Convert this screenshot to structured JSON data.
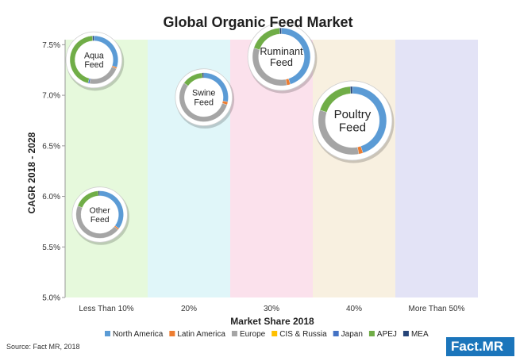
{
  "chart_data": {
    "type": "bubble-donut",
    "title": "Global Organic Feed Market",
    "xlabel": "Market Share 2018",
    "ylabel": "CAGR 2018 - 2028",
    "categories": [
      "Less Than 10%",
      "20%",
      "30%",
      "40%",
      "More Than 50%"
    ],
    "band_colors": [
      "#e6f9dc",
      "#e0f6f9",
      "#fbe1ec",
      "#f8f0e0",
      "#e3e3f6"
    ],
    "y_ticks": [
      "5.0%",
      "5.5%",
      "6.0%",
      "6.5%",
      "7.0%",
      "7.5%"
    ],
    "ylim": [
      5.0,
      7.55
    ],
    "legend": [
      {
        "name": "North America",
        "color": "#5b9bd5"
      },
      {
        "name": "Latin America",
        "color": "#ed7d31"
      },
      {
        "name": "Europe",
        "color": "#a5a5a5"
      },
      {
        "name": "CIS & Russia",
        "color": "#ffc000"
      },
      {
        "name": "Japan",
        "color": "#4472c4"
      },
      {
        "name": "APEJ",
        "color": "#70ad47"
      },
      {
        "name": "MEA",
        "color": "#264478"
      }
    ],
    "bubbles": [
      {
        "name": "Aqua Feed",
        "lines": [
          "Aqua",
          "Feed"
        ],
        "category": "Less Than 10%",
        "offset": 0.35,
        "cagr": 7.35,
        "size": 0.65,
        "shares": [
          30,
          1,
          22,
          0,
          1,
          45,
          1
        ]
      },
      {
        "name": "Swine Feed",
        "lines": [
          "Swine",
          "Feed"
        ],
        "category": "20%",
        "offset": 0.68,
        "cagr": 6.98,
        "size": 0.66,
        "shares": [
          28,
          2,
          55,
          0,
          0,
          14,
          1
        ]
      },
      {
        "name": "Ruminant Feed",
        "lines": [
          "Ruminant",
          "Feed"
        ],
        "category": "30%",
        "offset": 0.62,
        "cagr": 7.38,
        "size": 0.78,
        "shares": [
          45,
          2,
          33,
          0,
          0,
          19,
          1
        ]
      },
      {
        "name": "Poultry Feed",
        "lines": [
          "Poultry",
          "Feed"
        ],
        "category": "40%",
        "offset": 0.48,
        "cagr": 6.75,
        "size": 0.92,
        "shares": [
          45,
          2,
          33,
          0,
          0,
          19,
          1
        ]
      },
      {
        "name": "Other Feed",
        "lines": [
          "Other",
          "Feed"
        ],
        "category": "Less Than 10%",
        "offset": 0.42,
        "cagr": 5.82,
        "size": 0.64,
        "shares": [
          35,
          1,
          45,
          0,
          0,
          18,
          1
        ]
      }
    ]
  },
  "source": "Source: Fact MR, 2018",
  "logo": "Fact.MR"
}
